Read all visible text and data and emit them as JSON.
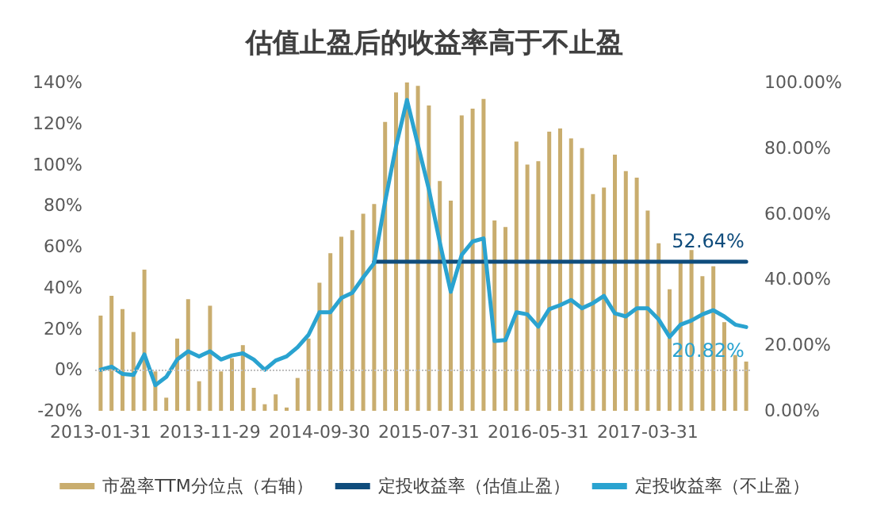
{
  "chart_data": {
    "type": "bar",
    "title": "估值止盈后的收益率高于不止盈",
    "categories": [
      "2013-01-31",
      null,
      null,
      null,
      null,
      null,
      null,
      null,
      null,
      null,
      "2013-11-29",
      null,
      null,
      null,
      null,
      null,
      null,
      null,
      null,
      null,
      "2014-09-30",
      null,
      null,
      null,
      null,
      null,
      null,
      null,
      null,
      null,
      "2015-07-31",
      null,
      null,
      null,
      null,
      null,
      null,
      null,
      null,
      null,
      "2016-05-31",
      null,
      null,
      null,
      null,
      null,
      null,
      null,
      null,
      null,
      "2017-03-31",
      null,
      null,
      null,
      null,
      null,
      null,
      null,
      null,
      null
    ],
    "series": [
      {
        "name": "市盈率TTM分位点（右轴）",
        "axis": "y2",
        "color": "#c9ad6e",
        "values": [
          29,
          35,
          31,
          24,
          43,
          12,
          4,
          22,
          34,
          9,
          32,
          12,
          16,
          20,
          7,
          2,
          5,
          1,
          10,
          22,
          39,
          48,
          53,
          55,
          60,
          63,
          88,
          97,
          100,
          99,
          93,
          70,
          64,
          90,
          92,
          95,
          58,
          56,
          82,
          75,
          76,
          85,
          86,
          83,
          80,
          66,
          68,
          78,
          73,
          71,
          61,
          51,
          37,
          45,
          49,
          41,
          44,
          27,
          17,
          15
        ]
      },
      {
        "name": "定投收益率（估值止盈）",
        "type": "line",
        "axis": "y",
        "color": "#0f4c7c",
        "values": [
          null,
          null,
          null,
          null,
          null,
          null,
          null,
          null,
          null,
          null,
          null,
          null,
          null,
          null,
          null,
          null,
          null,
          null,
          null,
          null,
          null,
          null,
          null,
          null,
          null,
          52.64,
          52.64,
          52.64,
          52.64,
          52.64,
          52.64,
          52.64,
          52.64,
          52.64,
          52.64,
          52.64,
          52.64,
          52.64,
          52.64,
          52.64,
          52.64,
          52.64,
          52.64,
          52.64,
          52.64,
          52.64,
          52.64,
          52.64,
          52.64,
          52.64,
          52.64,
          52.64,
          52.64,
          52.64,
          52.64,
          52.64,
          52.64,
          52.64,
          52.64,
          52.64
        ],
        "value_labels": [
          null,
          null,
          null,
          null,
          null,
          null,
          null,
          null,
          null,
          null,
          null,
          null,
          null,
          null,
          null,
          null,
          null,
          null,
          null,
          null,
          null,
          null,
          null,
          null,
          null,
          null,
          null,
          null,
          null,
          null,
          null,
          null,
          null,
          null,
          null,
          null,
          null,
          null,
          null,
          null,
          null,
          null,
          null,
          null,
          null,
          null,
          null,
          null,
          null,
          null,
          null,
          null,
          null,
          null,
          null,
          null,
          null,
          null,
          null,
          "52.64%"
        ]
      },
      {
        "name": "定投收益率（不止盈）",
        "type": "line",
        "axis": "y",
        "color": "#2aa3d0",
        "values": [
          0,
          1.5,
          -2,
          -2.5,
          7.5,
          -7.5,
          -3.5,
          5,
          9,
          6.5,
          9,
          5,
          7,
          8,
          5,
          0,
          4.5,
          6.5,
          11,
          17,
          28,
          28,
          35,
          37.5,
          45,
          52,
          82,
          109,
          131.5,
          109.5,
          88,
          62,
          38,
          56,
          62.5,
          64,
          14,
          14.5,
          28,
          27,
          21,
          29.5,
          31.5,
          34,
          30,
          32.5,
          36,
          27.5,
          26,
          30,
          30,
          24.5,
          16,
          22,
          24,
          27,
          29,
          26,
          22,
          20.82
        ],
        "value_labels": [
          null,
          null,
          null,
          null,
          null,
          null,
          null,
          null,
          null,
          null,
          null,
          null,
          null,
          null,
          null,
          null,
          null,
          null,
          null,
          null,
          null,
          null,
          null,
          null,
          null,
          null,
          null,
          null,
          null,
          null,
          null,
          null,
          null,
          null,
          null,
          null,
          null,
          null,
          null,
          null,
          null,
          null,
          null,
          null,
          null,
          null,
          null,
          null,
          null,
          null,
          null,
          null,
          null,
          null,
          null,
          null,
          null,
          null,
          null,
          "20.82%"
        ]
      }
    ],
    "ylim": [
      -20,
      140
    ],
    "yticks": [
      {
        "value": -20,
        "label": "-20%"
      },
      {
        "value": 0,
        "label": "0%"
      },
      {
        "value": 20,
        "label": "20%"
      },
      {
        "value": 40,
        "label": "40%"
      },
      {
        "value": 60,
        "label": "60%"
      },
      {
        "value": 80,
        "label": "80%"
      },
      {
        "value": 100,
        "label": "100%"
      },
      {
        "value": 120,
        "label": "120%"
      },
      {
        "value": 140,
        "label": "140%"
      }
    ],
    "y2lim": [
      0,
      100
    ],
    "y2ticks": [
      {
        "value": 0,
        "label": "0.00%"
      },
      {
        "value": 20,
        "label": "20.00%"
      },
      {
        "value": 40,
        "label": "40.00%"
      },
      {
        "value": 60,
        "label": "60.00%"
      },
      {
        "value": 80,
        "label": "80.00%"
      },
      {
        "value": 100,
        "label": "100.00%"
      }
    ],
    "ref_lines": [
      {
        "axis": "y",
        "value": 0,
        "color": "#bfbfbf",
        "line_style": "dotted"
      }
    ],
    "grid": false,
    "legend": "bottom",
    "marker": "none",
    "line_style": "solid"
  }
}
